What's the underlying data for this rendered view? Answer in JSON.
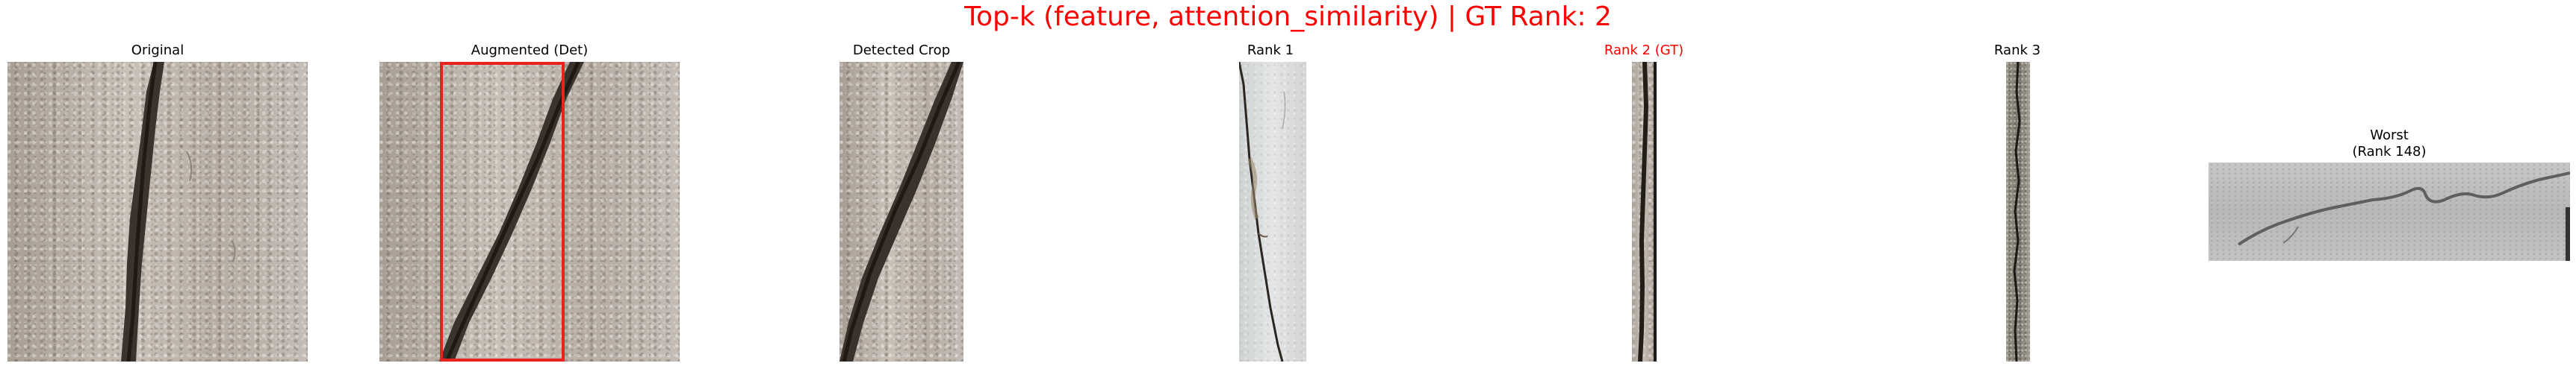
{
  "figure": {
    "suptitle": "Top-k (feature, attention_similarity) | GT Rank: 2",
    "title_color": "#ff0000"
  },
  "panels": [
    {
      "id": "original",
      "title": "Original"
    },
    {
      "id": "augmented",
      "title": "Augmented (Det)",
      "box_color": "#e8221d"
    },
    {
      "id": "detected",
      "title": "Detected Crop"
    },
    {
      "id": "rank1",
      "title": "Rank 1"
    },
    {
      "id": "rank2",
      "title": "Rank 2 (GT)",
      "title_color": "#ff0000"
    },
    {
      "id": "rank3",
      "title": "Rank 3"
    },
    {
      "id": "worst",
      "title_line1": "Worst",
      "title_line2": "(Rank 148)"
    }
  ],
  "icons": [
    "crack-image-original",
    "crack-image-augmented",
    "detection-box",
    "crack-image-crop",
    "crack-image-rank1",
    "crack-image-rank2",
    "crack-image-rank3",
    "crack-image-worst"
  ]
}
